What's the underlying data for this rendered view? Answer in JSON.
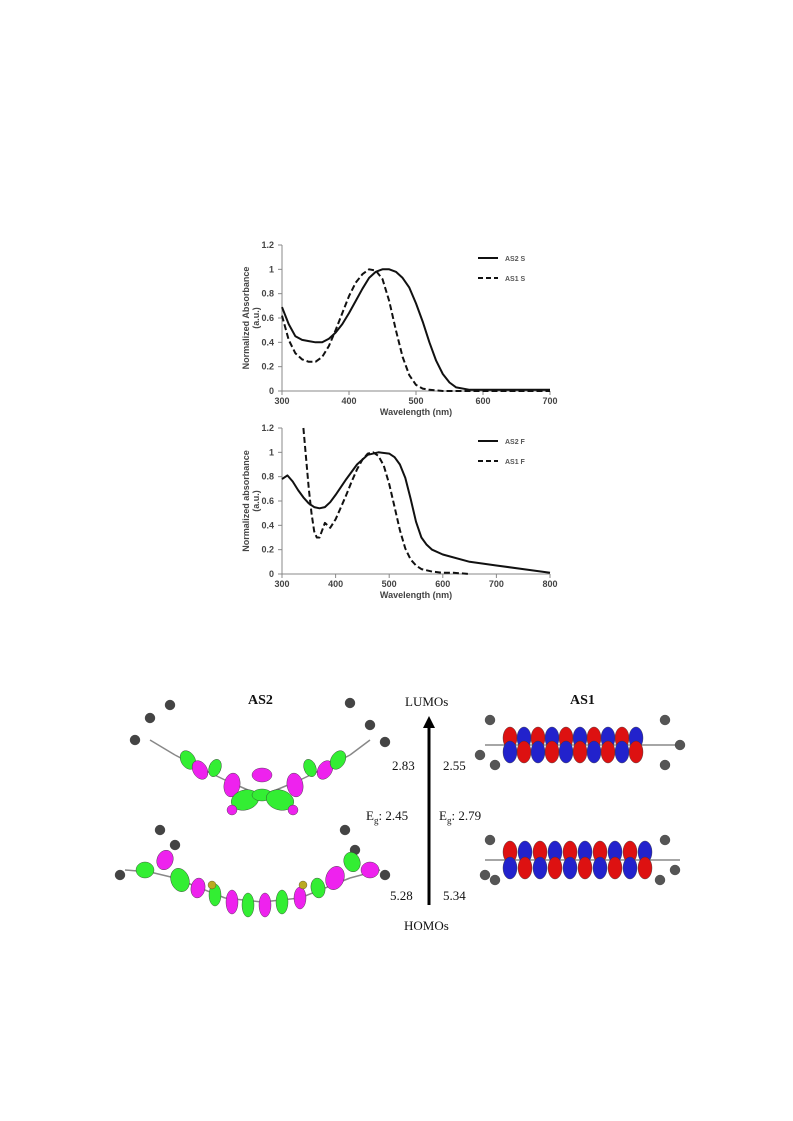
{
  "chart_data": [
    {
      "type": "line",
      "xlabel": "Wavelength (nm)",
      "ylabel": "Normalized Absorbance (a.u.)",
      "xlim": [
        300,
        700
      ],
      "ylim": [
        0,
        1.2
      ],
      "xticks": [
        "300",
        "400",
        "500",
        "600",
        "700"
      ],
      "yticks": [
        "0",
        "0.2",
        "0.4",
        "0.6",
        "0.8",
        "1",
        "1.2"
      ],
      "legend_position": "top-right",
      "series": [
        {
          "name": "AS2 S",
          "style": "solid",
          "x": [
            300,
            310,
            320,
            330,
            340,
            350,
            360,
            370,
            380,
            390,
            400,
            410,
            420,
            430,
            440,
            450,
            460,
            470,
            480,
            490,
            500,
            510,
            520,
            530,
            540,
            550,
            560,
            580,
            600,
            650,
            700
          ],
          "y": [
            0.69,
            0.55,
            0.45,
            0.42,
            0.41,
            0.4,
            0.4,
            0.43,
            0.48,
            0.55,
            0.64,
            0.74,
            0.84,
            0.93,
            0.98,
            1.0,
            1.0,
            0.98,
            0.93,
            0.85,
            0.72,
            0.57,
            0.4,
            0.25,
            0.14,
            0.07,
            0.03,
            0.01,
            0.01,
            0.01,
            0.01
          ]
        },
        {
          "name": "AS1 S",
          "style": "dashed",
          "x": [
            300,
            310,
            320,
            330,
            340,
            350,
            360,
            370,
            380,
            390,
            400,
            410,
            420,
            430,
            440,
            450,
            460,
            470,
            480,
            490,
            500,
            510,
            520,
            540,
            560,
            600,
            700
          ],
          "y": [
            0.62,
            0.42,
            0.31,
            0.26,
            0.24,
            0.24,
            0.28,
            0.37,
            0.5,
            0.64,
            0.78,
            0.89,
            0.96,
            1.0,
            0.99,
            0.92,
            0.74,
            0.5,
            0.28,
            0.13,
            0.05,
            0.02,
            0.01,
            0.0,
            0.0,
            0.0,
            0.0
          ]
        }
      ]
    },
    {
      "type": "line",
      "xlabel": "Wavelength (nm)",
      "ylabel": "Normalized absorbance (a.u.)",
      "xlim": [
        300,
        800
      ],
      "ylim": [
        0,
        1.2
      ],
      "xticks": [
        "300",
        "400",
        "500",
        "600",
        "700",
        "800"
      ],
      "yticks": [
        "0",
        "0.2",
        "0.4",
        "0.6",
        "0.8",
        "1",
        "1.2"
      ],
      "legend_position": "top-right",
      "series": [
        {
          "name": "AS2 F",
          "style": "solid",
          "x": [
            300,
            310,
            320,
            330,
            340,
            350,
            360,
            370,
            380,
            390,
            400,
            420,
            440,
            460,
            480,
            500,
            510,
            520,
            530,
            540,
            550,
            560,
            570,
            580,
            600,
            650,
            700,
            750,
            800
          ],
          "y": [
            0.78,
            0.81,
            0.76,
            0.69,
            0.63,
            0.58,
            0.55,
            0.54,
            0.55,
            0.59,
            0.65,
            0.78,
            0.9,
            0.98,
            1.0,
            0.99,
            0.96,
            0.9,
            0.79,
            0.62,
            0.43,
            0.3,
            0.24,
            0.2,
            0.16,
            0.1,
            0.07,
            0.04,
            0.01
          ]
        },
        {
          "name": "AS1 F",
          "style": "dashed",
          "x": [
            340,
            345,
            350,
            355,
            360,
            365,
            370,
            380,
            390,
            400,
            410,
            420,
            430,
            440,
            450,
            460,
            470,
            480,
            490,
            500,
            510,
            520,
            530,
            540,
            550,
            560,
            580,
            600,
            620,
            650
          ],
          "y": [
            1.2,
            0.95,
            0.7,
            0.5,
            0.35,
            0.3,
            0.3,
            0.42,
            0.38,
            0.45,
            0.55,
            0.65,
            0.76,
            0.86,
            0.94,
            0.99,
            1.0,
            0.97,
            0.89,
            0.74,
            0.55,
            0.36,
            0.21,
            0.12,
            0.07,
            0.04,
            0.02,
            0.01,
            0.01,
            0.0
          ]
        }
      ]
    }
  ],
  "mo_diagram": {
    "left_title": "AS2",
    "right_title": "AS1",
    "lumo_label": "LUMOs",
    "homo_label": "HOMOs",
    "as2_lumo": "2.83",
    "as1_lumo": "2.55",
    "as2_gap_prefix": "E",
    "as2_gap_sub": "g",
    "as2_gap_value": ": 2.45",
    "as1_gap_prefix": "E",
    "as1_gap_sub": "g",
    "as1_gap_value": ": 2.79",
    "as2_homo": "5.28",
    "as1_homo": "5.34",
    "colors": {
      "as2_lobe_a": "#33ee33",
      "as2_lobe_b": "#ee22ee",
      "as1_lobe_a": "#dd1111",
      "as1_lobe_b": "#2222cc",
      "atom": "#555555"
    }
  }
}
